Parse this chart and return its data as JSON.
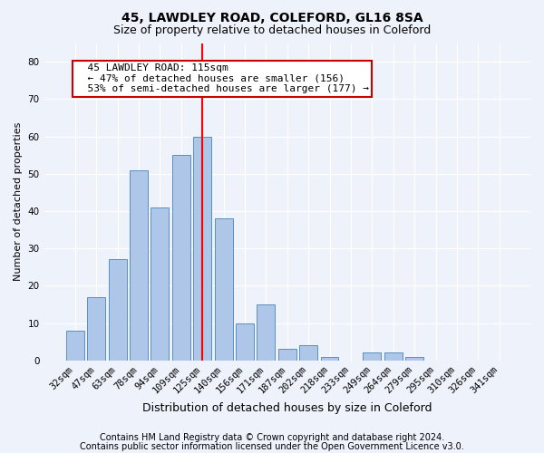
{
  "title1": "45, LAWDLEY ROAD, COLEFORD, GL16 8SA",
  "title2": "Size of property relative to detached houses in Coleford",
  "xlabel": "Distribution of detached houses by size in Coleford",
  "ylabel": "Number of detached properties",
  "categories": [
    "32sqm",
    "47sqm",
    "63sqm",
    "78sqm",
    "94sqm",
    "109sqm",
    "125sqm",
    "140sqm",
    "156sqm",
    "171sqm",
    "187sqm",
    "202sqm",
    "218sqm",
    "233sqm",
    "249sqm",
    "264sqm",
    "279sqm",
    "295sqm",
    "310sqm",
    "326sqm",
    "341sqm"
  ],
  "values": [
    8,
    17,
    27,
    51,
    41,
    55,
    60,
    38,
    10,
    15,
    3,
    4,
    1,
    0,
    2,
    2,
    1,
    0,
    0,
    0,
    0
  ],
  "bar_color": "#aec6e8",
  "bar_edgecolor": "#5a8fc0",
  "red_line_x": 6.0,
  "annotation_text": "  45 LAWDLEY ROAD: 115sqm\n  ← 47% of detached houses are smaller (156)\n  53% of semi-detached houses are larger (177) →",
  "annotation_box_color": "#ffffff",
  "annotation_box_edgecolor": "#cc0000",
  "ylim": [
    0,
    85
  ],
  "yticks": [
    0,
    10,
    20,
    30,
    40,
    50,
    60,
    70,
    80
  ],
  "footer1": "Contains HM Land Registry data © Crown copyright and database right 2024.",
  "footer2": "Contains public sector information licensed under the Open Government Licence v3.0.",
  "bg_color": "#eef2fa",
  "grid_color": "#ffffff",
  "title1_fontsize": 10,
  "title2_fontsize": 9,
  "xlabel_fontsize": 9,
  "ylabel_fontsize": 8,
  "tick_fontsize": 7.5,
  "footer_fontsize": 7,
  "ann_fontsize": 8
}
